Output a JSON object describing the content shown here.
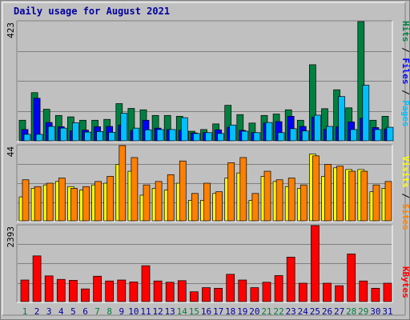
{
  "title": "Daily usage for August 2021",
  "colors": {
    "hits": "#008040",
    "files": "#0000ff",
    "pages": "#00c0ff",
    "visits": "#ffff00",
    "sites": "#ff8000",
    "kbytes": "#ff0000",
    "weekend_day": "#008040",
    "weekday": "#0000a0"
  },
  "chart_data": [
    {
      "type": "bar",
      "panel": "hits-files-pages",
      "ymax_label": "423",
      "ylim": [
        0,
        423
      ],
      "grid": true,
      "legend_labels": [
        "Pages",
        "Files",
        "Hits"
      ],
      "categories": [
        "1",
        "2",
        "3",
        "4",
        "5",
        "6",
        "7",
        "8",
        "9",
        "10",
        "11",
        "12",
        "13",
        "14",
        "15",
        "16",
        "17",
        "18",
        "19",
        "20",
        "21",
        "22",
        "23",
        "24",
        "25",
        "26",
        "27",
        "28",
        "29",
        "30",
        "31"
      ],
      "series": [
        {
          "name": "Hits",
          "values": [
            73,
            171,
            112,
            90,
            85,
            73,
            73,
            76,
            132,
            115,
            110,
            90,
            90,
            87,
            34,
            40,
            60,
            126,
            93,
            63,
            90,
            95,
            110,
            73,
            270,
            114,
            181,
            117,
            423,
            73,
            87
          ]
        },
        {
          "name": "Files",
          "values": [
            40,
            151,
            65,
            50,
            35,
            38,
            50,
            51,
            56,
            37,
            73,
            45,
            40,
            37,
            28,
            29,
            39,
            48,
            37,
            29,
            63,
            68,
            87,
            51,
            84,
            41,
            50,
            67,
            80,
            47,
            42
          ]
        },
        {
          "name": "Pages",
          "values": [
            23,
            23,
            51,
            45,
            64,
            31,
            33,
            30,
            98,
            45,
            39,
            40,
            40,
            82,
            26,
            29,
            26,
            56,
            34,
            29,
            65,
            29,
            43,
            35,
            91,
            51,
            157,
            40,
            197,
            40,
            48
          ]
        }
      ]
    },
    {
      "type": "bar",
      "panel": "visits-sites",
      "ymax_label": "44",
      "ylim": [
        0,
        44
      ],
      "grid": true,
      "legend_labels": [
        "Sites",
        "Visits"
      ],
      "categories": [
        "1",
        "2",
        "3",
        "4",
        "5",
        "6",
        "7",
        "8",
        "9",
        "10",
        "11",
        "12",
        "13",
        "14",
        "15",
        "16",
        "17",
        "18",
        "19",
        "20",
        "21",
        "22",
        "23",
        "24",
        "25",
        "26",
        "27",
        "28",
        "29",
        "30",
        "31"
      ],
      "series": [
        {
          "name": "Visits",
          "values": [
            14,
            19,
            21,
            23,
            20,
            18,
            21,
            22,
            33,
            29,
            15,
            19,
            18,
            22,
            12,
            12,
            16,
            25,
            28,
            12,
            26,
            23,
            20,
            19,
            39,
            26,
            31,
            30,
            30,
            17,
            19
          ]
        },
        {
          "name": "Sites",
          "values": [
            24,
            20,
            22,
            25,
            19,
            20,
            23,
            26,
            44,
            37,
            21,
            23,
            27,
            35,
            16,
            22,
            17,
            34,
            37,
            16,
            29,
            24,
            25,
            21,
            38,
            33,
            32,
            29,
            29,
            21,
            23
          ]
        }
      ]
    },
    {
      "type": "bar",
      "panel": "kbytes",
      "ymax_label": "2393",
      "ylim": [
        0,
        2393
      ],
      "grid": true,
      "legend_labels": [
        "KBytes"
      ],
      "categories": [
        "1",
        "2",
        "3",
        "4",
        "5",
        "6",
        "7",
        "8",
        "9",
        "10",
        "11",
        "12",
        "13",
        "14",
        "15",
        "16",
        "17",
        "18",
        "19",
        "20",
        "21",
        "22",
        "23",
        "24",
        "25",
        "26",
        "27",
        "28",
        "29",
        "30",
        "31"
      ],
      "series": [
        {
          "name": "KBytes",
          "values": [
            680,
            1440,
            810,
            700,
            670,
            400,
            800,
            650,
            680,
            620,
            1130,
            650,
            610,
            660,
            310,
            440,
            420,
            860,
            680,
            440,
            610,
            820,
            1400,
            580,
            2393,
            580,
            500,
            1500,
            650,
            420,
            580
          ]
        }
      ]
    }
  ],
  "day_labels": [
    "1",
    "2",
    "3",
    "4",
    "5",
    "6",
    "7",
    "8",
    "9",
    "10",
    "11",
    "12",
    "13",
    "14",
    "15",
    "16",
    "17",
    "18",
    "19",
    "20",
    "21",
    "22",
    "23",
    "24",
    "25",
    "26",
    "27",
    "28",
    "29",
    "30",
    "31"
  ],
  "weekend_days": [
    1,
    7,
    8,
    14,
    15,
    21,
    22,
    28,
    29
  ]
}
